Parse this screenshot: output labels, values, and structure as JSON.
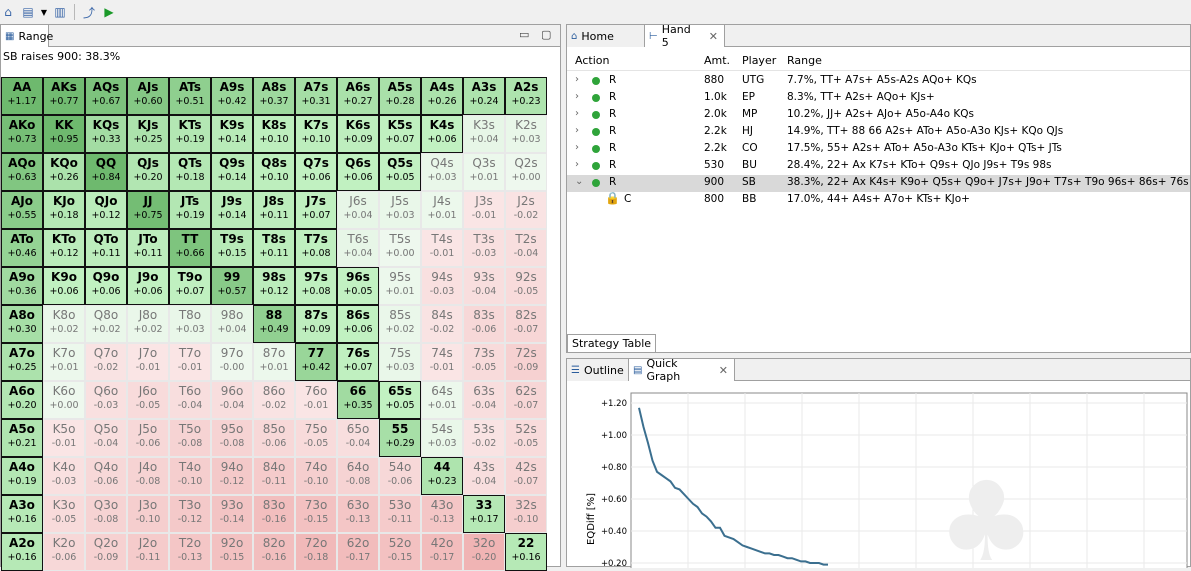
{
  "range_panel": {
    "tab_label": "Range",
    "subtitle": "SB raises 900: 38.3%",
    "cells": [
      [
        "AA",
        "+1.17"
      ],
      [
        "AKs",
        "+0.77"
      ],
      [
        "AQs",
        "+0.67"
      ],
      [
        "AJs",
        "+0.60"
      ],
      [
        "ATs",
        "+0.51"
      ],
      [
        "A9s",
        "+0.42"
      ],
      [
        "A8s",
        "+0.37"
      ],
      [
        "A7s",
        "+0.31"
      ],
      [
        "A6s",
        "+0.27"
      ],
      [
        "A5s",
        "+0.28"
      ],
      [
        "A4s",
        "+0.26"
      ],
      [
        "A3s",
        "+0.24"
      ],
      [
        "A2s",
        "+0.23"
      ],
      [
        "AKo",
        "+0.73"
      ],
      [
        "KK",
        "+0.95"
      ],
      [
        "KQs",
        "+0.33"
      ],
      [
        "KJs",
        "+0.25"
      ],
      [
        "KTs",
        "+0.19"
      ],
      [
        "K9s",
        "+0.14"
      ],
      [
        "K8s",
        "+0.10"
      ],
      [
        "K7s",
        "+0.10"
      ],
      [
        "K6s",
        "+0.09"
      ],
      [
        "K5s",
        "+0.07"
      ],
      [
        "K4s",
        "+0.06"
      ],
      [
        "K3s",
        "+0.04"
      ],
      [
        "K2s",
        "+0.03"
      ],
      [
        "AQo",
        "+0.63"
      ],
      [
        "KQo",
        "+0.26"
      ],
      [
        "QQ",
        "+0.84"
      ],
      [
        "QJs",
        "+0.20"
      ],
      [
        "QTs",
        "+0.18"
      ],
      [
        "Q9s",
        "+0.14"
      ],
      [
        "Q8s",
        "+0.10"
      ],
      [
        "Q7s",
        "+0.06"
      ],
      [
        "Q6s",
        "+0.06"
      ],
      [
        "Q5s",
        "+0.05"
      ],
      [
        "Q4s",
        "+0.03"
      ],
      [
        "Q3s",
        "+0.01"
      ],
      [
        "Q2s",
        "+0.00"
      ],
      [
        "AJo",
        "+0.55"
      ],
      [
        "KJo",
        "+0.18"
      ],
      [
        "QJo",
        "+0.12"
      ],
      [
        "JJ",
        "+0.75"
      ],
      [
        "JTs",
        "+0.19"
      ],
      [
        "J9s",
        "+0.14"
      ],
      [
        "J8s",
        "+0.11"
      ],
      [
        "J7s",
        "+0.07"
      ],
      [
        "J6s",
        "+0.04"
      ],
      [
        "J5s",
        "+0.03"
      ],
      [
        "J4s",
        "+0.01"
      ],
      [
        "J3s",
        "-0.01"
      ],
      [
        "J2s",
        "-0.02"
      ],
      [
        "ATo",
        "+0.46"
      ],
      [
        "KTo",
        "+0.12"
      ],
      [
        "QTo",
        "+0.11"
      ],
      [
        "JTo",
        "+0.11"
      ],
      [
        "TT",
        "+0.66"
      ],
      [
        "T9s",
        "+0.15"
      ],
      [
        "T8s",
        "+0.11"
      ],
      [
        "T7s",
        "+0.08"
      ],
      [
        "T6s",
        "+0.04"
      ],
      [
        "T5s",
        "+0.00"
      ],
      [
        "T4s",
        "-0.01"
      ],
      [
        "T3s",
        "-0.03"
      ],
      [
        "T2s",
        "-0.04"
      ],
      [
        "A9o",
        "+0.36"
      ],
      [
        "K9o",
        "+0.06"
      ],
      [
        "Q9o",
        "+0.06"
      ],
      [
        "J9o",
        "+0.06"
      ],
      [
        "T9o",
        "+0.07"
      ],
      [
        "99",
        "+0.57"
      ],
      [
        "98s",
        "+0.12"
      ],
      [
        "97s",
        "+0.08"
      ],
      [
        "96s",
        "+0.05"
      ],
      [
        "95s",
        "+0.01"
      ],
      [
        "94s",
        "-0.03"
      ],
      [
        "93s",
        "-0.04"
      ],
      [
        "92s",
        "-0.05"
      ],
      [
        "A8o",
        "+0.30"
      ],
      [
        "K8o",
        "+0.02"
      ],
      [
        "Q8o",
        "+0.02"
      ],
      [
        "J8o",
        "+0.02"
      ],
      [
        "T8o",
        "+0.03"
      ],
      [
        "98o",
        "+0.04"
      ],
      [
        "88",
        "+0.49"
      ],
      [
        "87s",
        "+0.09"
      ],
      [
        "86s",
        "+0.06"
      ],
      [
        "85s",
        "+0.02"
      ],
      [
        "84s",
        "-0.02"
      ],
      [
        "83s",
        "-0.06"
      ],
      [
        "82s",
        "-0.07"
      ],
      [
        "A7o",
        "+0.25"
      ],
      [
        "K7o",
        "+0.01"
      ],
      [
        "Q7o",
        "-0.02"
      ],
      [
        "J7o",
        "-0.01"
      ],
      [
        "T7o",
        "-0.01"
      ],
      [
        "97o",
        "-0.00"
      ],
      [
        "87o",
        "+0.01"
      ],
      [
        "77",
        "+0.42"
      ],
      [
        "76s",
        "+0.07"
      ],
      [
        "75s",
        "+0.03"
      ],
      [
        "74s",
        "-0.01"
      ],
      [
        "73s",
        "-0.05"
      ],
      [
        "72s",
        "-0.09"
      ],
      [
        "A6o",
        "+0.20"
      ],
      [
        "K6o",
        "+0.00"
      ],
      [
        "Q6o",
        "-0.03"
      ],
      [
        "J6o",
        "-0.05"
      ],
      [
        "T6o",
        "-0.04"
      ],
      [
        "96o",
        "-0.04"
      ],
      [
        "86o",
        "-0.02"
      ],
      [
        "76o",
        "-0.01"
      ],
      [
        "66",
        "+0.35"
      ],
      [
        "65s",
        "+0.05"
      ],
      [
        "64s",
        "+0.01"
      ],
      [
        "63s",
        "-0.04"
      ],
      [
        "62s",
        "-0.07"
      ],
      [
        "A5o",
        "+0.21"
      ],
      [
        "K5o",
        "-0.01"
      ],
      [
        "Q5o",
        "-0.04"
      ],
      [
        "J5o",
        "-0.06"
      ],
      [
        "T5o",
        "-0.08"
      ],
      [
        "95o",
        "-0.08"
      ],
      [
        "85o",
        "-0.06"
      ],
      [
        "75o",
        "-0.05"
      ],
      [
        "65o",
        "-0.04"
      ],
      [
        "55",
        "+0.29"
      ],
      [
        "54s",
        "+0.03"
      ],
      [
        "53s",
        "-0.02"
      ],
      [
        "52s",
        "-0.05"
      ],
      [
        "A4o",
        "+0.19"
      ],
      [
        "K4o",
        "-0.03"
      ],
      [
        "Q4o",
        "-0.06"
      ],
      [
        "J4o",
        "-0.08"
      ],
      [
        "T4o",
        "-0.10"
      ],
      [
        "94o",
        "-0.12"
      ],
      [
        "84o",
        "-0.11"
      ],
      [
        "74o",
        "-0.10"
      ],
      [
        "64o",
        "-0.08"
      ],
      [
        "54o",
        "-0.06"
      ],
      [
        "44",
        "+0.23"
      ],
      [
        "43s",
        "-0.04"
      ],
      [
        "42s",
        "-0.07"
      ],
      [
        "A3o",
        "+0.16"
      ],
      [
        "K3o",
        "-0.05"
      ],
      [
        "Q3o",
        "-0.08"
      ],
      [
        "J3o",
        "-0.10"
      ],
      [
        "T3o",
        "-0.12"
      ],
      [
        "93o",
        "-0.14"
      ],
      [
        "83o",
        "-0.16"
      ],
      [
        "73o",
        "-0.15"
      ],
      [
        "63o",
        "-0.13"
      ],
      [
        "53o",
        "-0.11"
      ],
      [
        "43o",
        "-0.13"
      ],
      [
        "33",
        "+0.17"
      ],
      [
        "32s",
        "-0.10"
      ],
      [
        "A2o",
        "+0.16"
      ],
      [
        "K2o",
        "-0.06"
      ],
      [
        "Q2o",
        "-0.09"
      ],
      [
        "J2o",
        "-0.11"
      ],
      [
        "T2o",
        "-0.13"
      ],
      [
        "92o",
        "-0.15"
      ],
      [
        "82o",
        "-0.16"
      ],
      [
        "72o",
        "-0.18"
      ],
      [
        "62o",
        "-0.17"
      ],
      [
        "52o",
        "-0.15"
      ],
      [
        "42o",
        "-0.17"
      ],
      [
        "32o",
        "-0.20"
      ],
      [
        "22",
        "+0.16"
      ]
    ],
    "in_range": [
      "AA",
      "AKs",
      "AQs",
      "AJs",
      "ATs",
      "A9s",
      "A8s",
      "A7s",
      "A6s",
      "A5s",
      "A4s",
      "A3s",
      "A2s",
      "AKo",
      "KK",
      "KQs",
      "KJs",
      "KTs",
      "K9s",
      "K8s",
      "K7s",
      "K6s",
      "K5s",
      "K4s",
      "AQo",
      "KQo",
      "QQ",
      "QJs",
      "QTs",
      "Q9s",
      "Q8s",
      "Q7s",
      "Q6s",
      "Q5s",
      "AJo",
      "KJo",
      "QJo",
      "JJ",
      "JTs",
      "J9s",
      "J8s",
      "J7s",
      "ATo",
      "KTo",
      "QTo",
      "JTo",
      "TT",
      "T9s",
      "T8s",
      "T7s",
      "A9o",
      "K9o",
      "Q9o",
      "J9o",
      "T9o",
      "99",
      "98s",
      "97s",
      "96s",
      "A8o",
      "88",
      "87s",
      "86s",
      "A7o",
      "77",
      "76s",
      "A6o",
      "66",
      "65s",
      "A5o",
      "55",
      "A4o",
      "44",
      "A3o",
      "33",
      "A2o",
      "22"
    ]
  },
  "toolbar": {
    "icons": [
      "home-icon",
      "new-icon",
      "dropdown-icon",
      "chart-icon",
      "export-icon",
      "play-icon"
    ]
  },
  "hand_panel": {
    "tabs": [
      {
        "label": "Home"
      },
      {
        "label": "Hand 5"
      }
    ],
    "headers": {
      "action": "Action",
      "amt": "Amt.",
      "player": "Player",
      "range": "Range"
    },
    "rows": [
      {
        "action": "R",
        "amt": "880",
        "player": "UTG",
        "range": "7.7%, TT+ A7s+ A5s-A2s AQo+ KQs"
      },
      {
        "action": "R",
        "amt": "1.0k",
        "player": "EP",
        "range": "8.3%, TT+ A2s+ AQo+ KJs+"
      },
      {
        "action": "R",
        "amt": "2.0k",
        "player": "MP",
        "range": "10.2%, JJ+ A2s+ AJo+ A5o-A4o KQs"
      },
      {
        "action": "R",
        "amt": "2.2k",
        "player": "HJ",
        "range": "14.9%, TT+ 88 66 A2s+ ATo+ A5o-A3o KJs+ KQo QJs"
      },
      {
        "action": "R",
        "amt": "2.2k",
        "player": "CO",
        "range": "17.5%, 55+ A2s+ ATo+ A5o-A3o KTs+ KJo+ QTs+ JTs"
      },
      {
        "action": "R",
        "amt": "530",
        "player": "BU",
        "range": "28.4%, 22+ Ax K7s+ KTo+ Q9s+ QJo J9s+ T9s 98s"
      },
      {
        "action": "R",
        "amt": "900",
        "player": "SB",
        "range": "38.3%, 22+ Ax K4s+ K9o+ Q5s+ Q9o+ J7s+ J9o+ T7s+ T9o 96s+ 86s+ 76s 65s"
      },
      {
        "action": "C",
        "amt": "800",
        "player": "BB",
        "range": "17.0%, 44+ A4s+ A7o+ KTs+ KJo+"
      }
    ],
    "strategy_tab": "Strategy Table"
  },
  "graph_panel": {
    "tabs": [
      {
        "label": "Outline"
      },
      {
        "label": "Quick Graph"
      }
    ],
    "chart_data": {
      "type": "line",
      "ylabel": "EQDiff [%]",
      "y_ticks": [
        "+1.20",
        "+1.00",
        "+0.80",
        "+0.60",
        "+0.40",
        "+0.20"
      ],
      "ylim": [
        0.2,
        1.2
      ],
      "series": [
        {
          "values": [
            1.17,
            1.05,
            0.95,
            0.84,
            0.77,
            0.75,
            0.73,
            0.71,
            0.67,
            0.66,
            0.63,
            0.6,
            0.57,
            0.55,
            0.51,
            0.49,
            0.46,
            0.42,
            0.42,
            0.37,
            0.36,
            0.35,
            0.33,
            0.31,
            0.3,
            0.29,
            0.28,
            0.27,
            0.26,
            0.26,
            0.25,
            0.25,
            0.24,
            0.23,
            0.23,
            0.22,
            0.21,
            0.21,
            0.2,
            0.2,
            0.2,
            0.19,
            0.19
          ]
        }
      ]
    }
  }
}
